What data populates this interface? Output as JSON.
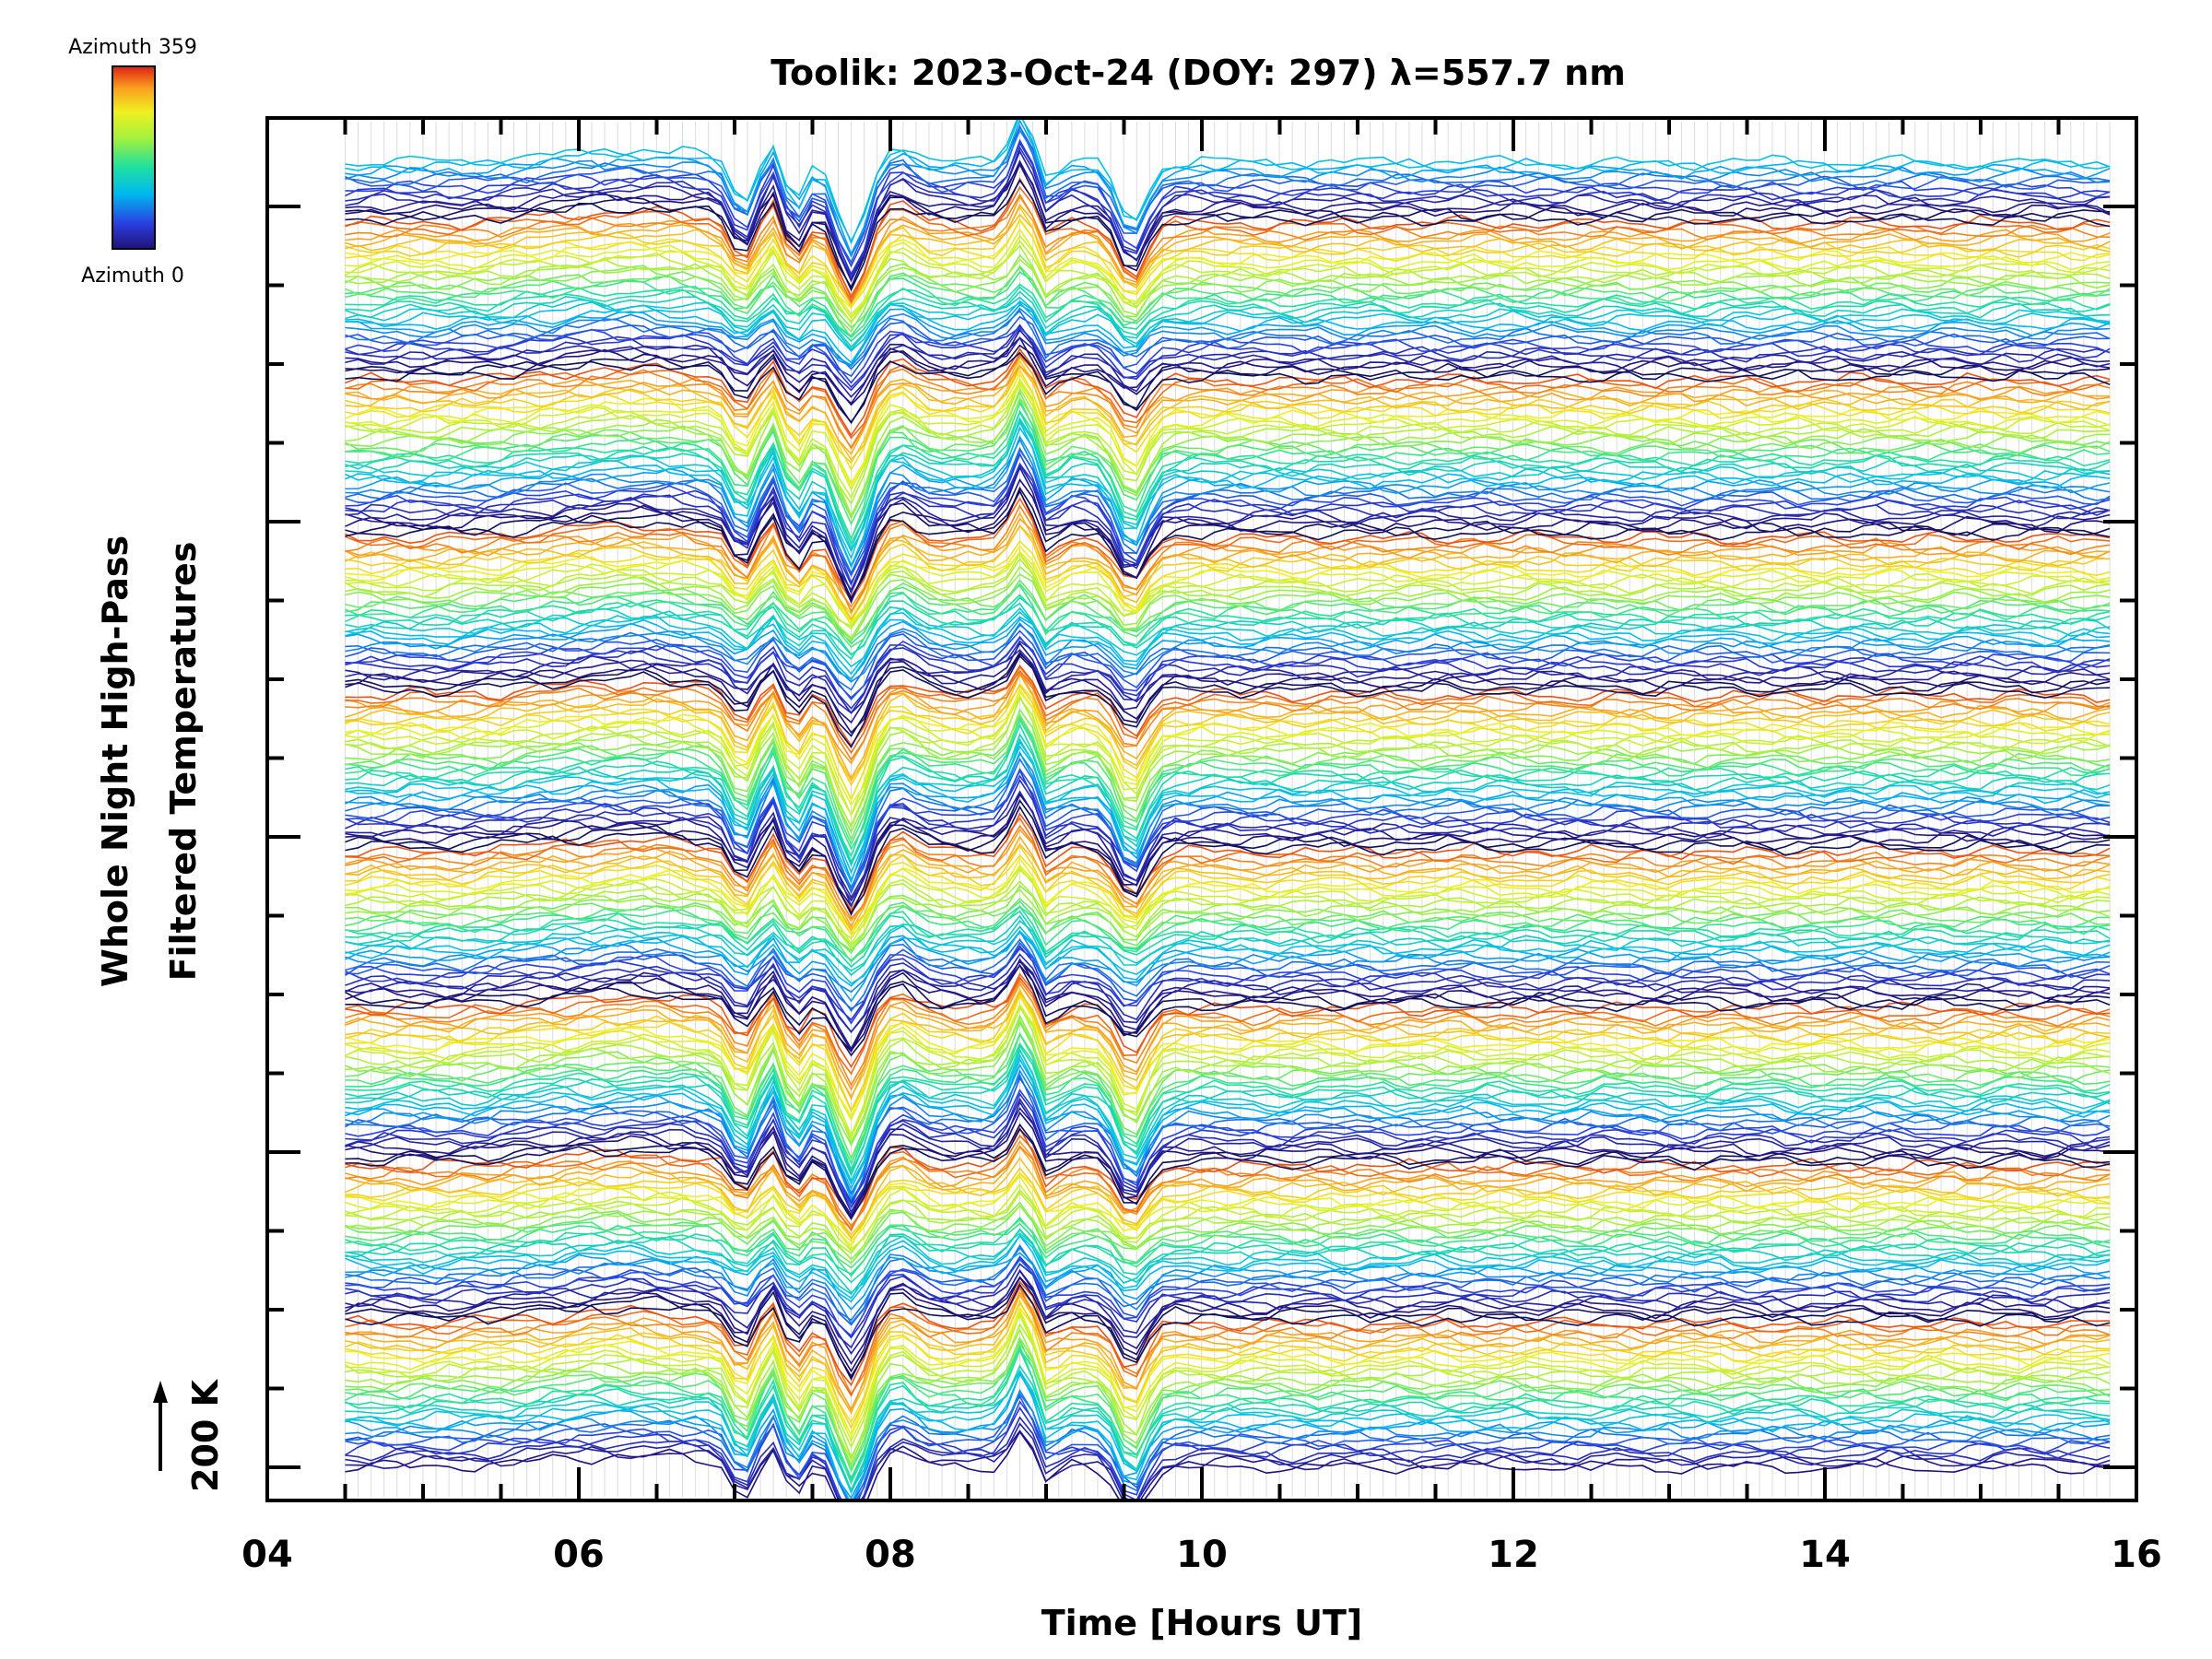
{
  "chart_data": {
    "type": "line",
    "title": "Toolik: 2023-Oct-24 (DOY: 297) λ=557.7 nm",
    "xlabel": "Time [Hours UT]",
    "ylabel_line1": "Whole Night High-Pass",
    "ylabel_line2": "Filtered Temperatures",
    "scale_label": "200 K",
    "xlim": [
      4,
      16
    ],
    "x_ticks": [
      "04",
      "06",
      "08",
      "10",
      "12",
      "14",
      "16"
    ],
    "x_data_range": [
      4.5,
      15.85
    ],
    "grid": "vertical light gray lines at sample times",
    "colorbar": {
      "top_label": "Azimuth 359",
      "bottom_label": "Azimuth 0",
      "colors": [
        "#20107a",
        "#2a40e0",
        "#00b8f0",
        "#20e0a0",
        "#a0f040",
        "#f0f020",
        "#f8a020",
        "#e02010"
      ]
    },
    "series_count": 300,
    "series_description": "Stacked traces, one per look direction, each offset vertically; color encodes azimuth (0-359), repeating in 8 bands of ~36 traces each",
    "key_events_hours_ut": [
      7.05,
      7.35,
      7.75,
      8.85,
      9.55
    ],
    "y_tick_count": 17
  }
}
